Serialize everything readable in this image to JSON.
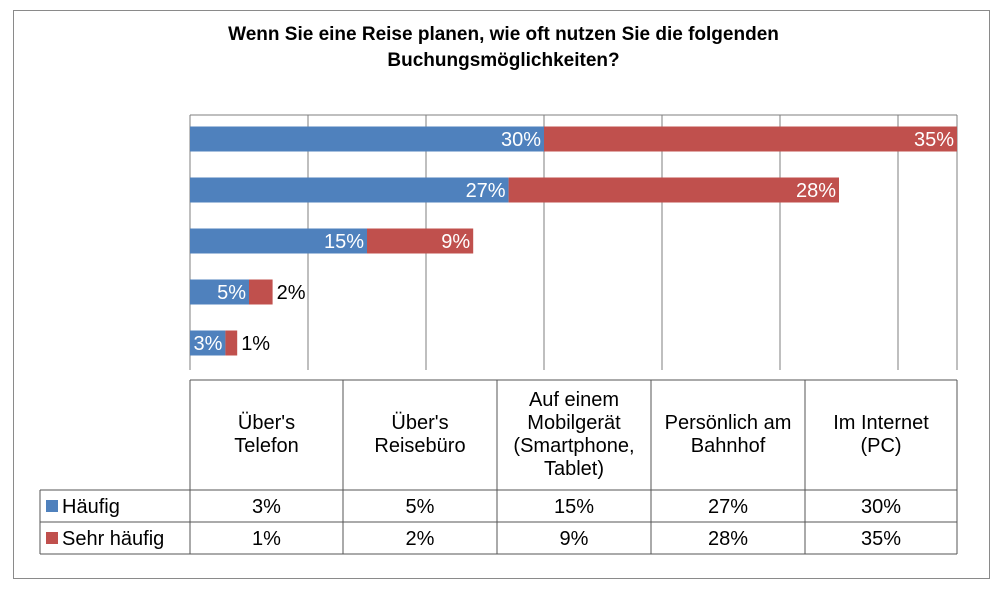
{
  "chart_data": {
    "type": "bar",
    "orientation": "horizontal",
    "stacked": true,
    "title_lines": [
      "Wenn Sie eine Reise planen, wie oft nutzen Sie die folgenden",
      "Buchungsmöglichkeiten?"
    ],
    "categories": [
      "Über's Telefon",
      "Über's Reisebüro",
      "Auf einem Mobilgerät (Smartphone, Tablet)",
      "Persönlich am Bahnhof",
      "Im Internet (PC)"
    ],
    "category_lines": [
      [
        "Über's",
        "Telefon"
      ],
      [
        "Über's",
        "Reisebüro"
      ],
      [
        "Auf einem",
        "Mobilgerät",
        "(Smartphone,",
        "Tablet)"
      ],
      [
        "Persönlich am",
        "Bahnhof"
      ],
      [
        "Im Internet",
        "(PC)"
      ]
    ],
    "series": [
      {
        "name": "Häufig",
        "color": "#4f81bd",
        "values": [
          3,
          5,
          15,
          27,
          30
        ],
        "labels": [
          "3%",
          "5%",
          "15%",
          "27%",
          "30%"
        ]
      },
      {
        "name": "Sehr häufig",
        "color": "#c0504d",
        "values": [
          1,
          2,
          9,
          28,
          35
        ],
        "labels": [
          "1%",
          "2%",
          "9%",
          "28%",
          "35%"
        ]
      }
    ],
    "xlim": [
      0,
      65
    ],
    "grid": true,
    "legend": "data-table-left"
  }
}
